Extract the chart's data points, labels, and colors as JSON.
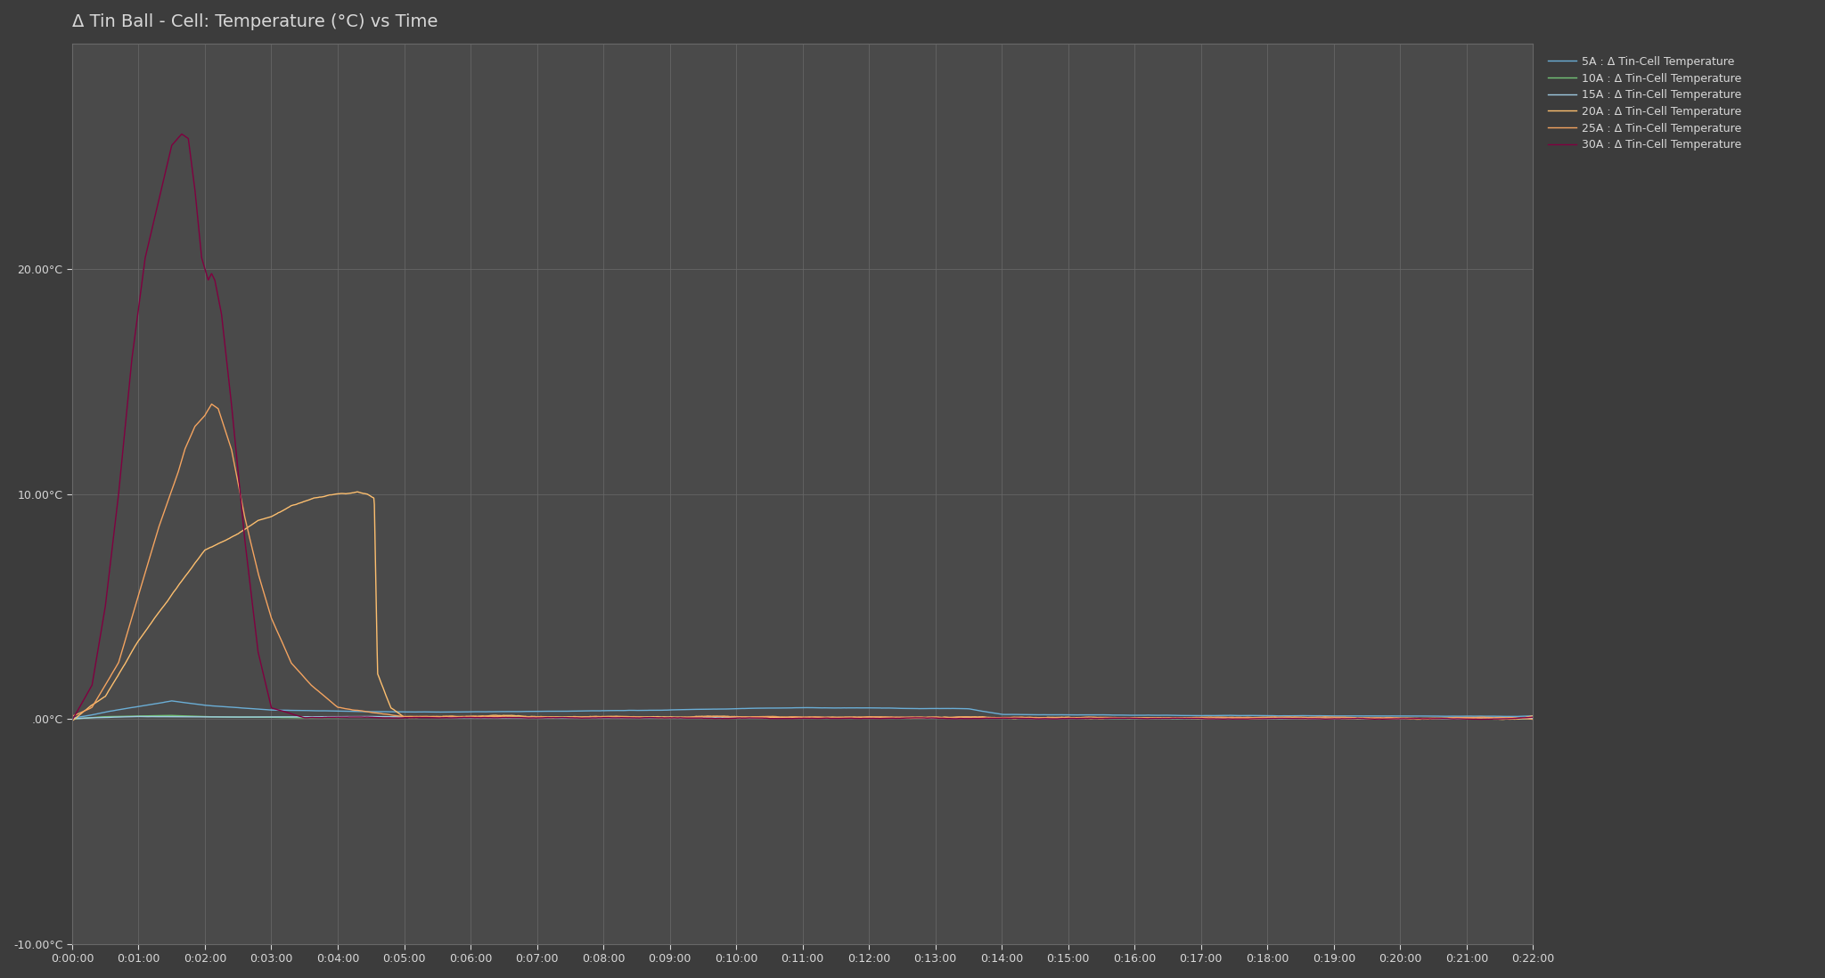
{
  "title": "Δ Tin Ball - Cell: Temperature (°C) vs Time",
  "background_color": "#3c3c3c",
  "plot_bg_color": "#4a4a4a",
  "grid_color": "#686868",
  "text_color": "#d8d8d8",
  "title_fontsize": 14,
  "tick_fontsize": 9,
  "legend_fontsize": 9,
  "ylim": [
    -10,
    30
  ],
  "yticks": [
    -10,
    0,
    10,
    20
  ],
  "ytick_labels": [
    "-10.00°C",
    ".00°C",
    "10.00°C",
    "20.00°C"
  ],
  "total_minutes": 22,
  "series": [
    {
      "label": "5A : Δ Tin-Cell Temperature",
      "color": "#6baed6",
      "segments": [
        {
          "t": 0.0,
          "v": 0.0
        },
        {
          "t": 0.5,
          "v": 0.3
        },
        {
          "t": 1.5,
          "v": 0.8
        },
        {
          "t": 2.0,
          "v": 0.6
        },
        {
          "t": 3.0,
          "v": 0.4
        },
        {
          "t": 5.0,
          "v": 0.3
        },
        {
          "t": 8.0,
          "v": 0.35
        },
        {
          "t": 11.0,
          "v": 0.5
        },
        {
          "t": 13.5,
          "v": 0.45
        },
        {
          "t": 14.0,
          "v": 0.2
        },
        {
          "t": 17.0,
          "v": 0.15
        },
        {
          "t": 22.0,
          "v": 0.1
        }
      ],
      "noise": 0.04
    },
    {
      "label": "10A : Δ Tin-Cell Temperature",
      "color": "#74c476",
      "segments": [
        {
          "t": 0.0,
          "v": 0.0
        },
        {
          "t": 0.5,
          "v": 0.1
        },
        {
          "t": 1.5,
          "v": 0.15
        },
        {
          "t": 2.0,
          "v": 0.1
        },
        {
          "t": 3.5,
          "v": 0.05
        },
        {
          "t": 4.5,
          "v": 0.08
        },
        {
          "t": 6.0,
          "v": 0.1
        },
        {
          "t": 8.0,
          "v": 0.08
        },
        {
          "t": 10.0,
          "v": 0.05
        },
        {
          "t": 22.0,
          "v": 0.0
        }
      ],
      "noise": 0.03
    },
    {
      "label": "15A : Δ Tin-Cell Temperature",
      "color": "#9ecae1",
      "segments": [
        {
          "t": 0.0,
          "v": 0.0
        },
        {
          "t": 0.3,
          "v": 0.05
        },
        {
          "t": 1.0,
          "v": 0.1
        },
        {
          "t": 2.5,
          "v": 0.08
        },
        {
          "t": 4.5,
          "v": 0.1
        },
        {
          "t": 6.0,
          "v": 0.05
        },
        {
          "t": 8.5,
          "v": 0.05
        },
        {
          "t": 22.0,
          "v": 0.0
        }
      ],
      "noise": 0.025
    },
    {
      "label": "20A : Δ Tin-Cell Temperature",
      "color": "#fdbf6f",
      "segments": [
        {
          "t": 0.0,
          "v": 0.0
        },
        {
          "t": 0.5,
          "v": 1.0
        },
        {
          "t": 1.0,
          "v": 3.5
        },
        {
          "t": 1.5,
          "v": 5.5
        },
        {
          "t": 2.0,
          "v": 7.5
        },
        {
          "t": 2.5,
          "v": 8.2
        },
        {
          "t": 2.8,
          "v": 8.8
        },
        {
          "t": 3.0,
          "v": 9.0
        },
        {
          "t": 3.3,
          "v": 9.5
        },
        {
          "t": 3.6,
          "v": 9.8
        },
        {
          "t": 3.8,
          "v": 9.9
        },
        {
          "t": 4.0,
          "v": 10.0
        },
        {
          "t": 4.2,
          "v": 10.05
        },
        {
          "t": 4.3,
          "v": 10.1
        },
        {
          "t": 4.45,
          "v": 10.0
        },
        {
          "t": 4.55,
          "v": 9.8
        },
        {
          "t": 4.6,
          "v": 2.0
        },
        {
          "t": 4.8,
          "v": 0.5
        },
        {
          "t": 5.0,
          "v": 0.1
        },
        {
          "t": 22.0,
          "v": 0.0
        }
      ],
      "noise": 0.15
    },
    {
      "label": "25A : Δ Tin-Cell Temperature",
      "color": "#f4a460",
      "segments": [
        {
          "t": 0.0,
          "v": 0.0
        },
        {
          "t": 0.3,
          "v": 0.5
        },
        {
          "t": 0.7,
          "v": 2.5
        },
        {
          "t": 1.0,
          "v": 5.5
        },
        {
          "t": 1.3,
          "v": 8.5
        },
        {
          "t": 1.6,
          "v": 11.0
        },
        {
          "t": 1.7,
          "v": 12.0
        },
        {
          "t": 1.85,
          "v": 13.0
        },
        {
          "t": 2.0,
          "v": 13.5
        },
        {
          "t": 2.1,
          "v": 14.0
        },
        {
          "t": 2.2,
          "v": 13.8
        },
        {
          "t": 2.4,
          "v": 12.0
        },
        {
          "t": 2.6,
          "v": 9.0
        },
        {
          "t": 2.8,
          "v": 6.5
        },
        {
          "t": 3.0,
          "v": 4.5
        },
        {
          "t": 3.3,
          "v": 2.5
        },
        {
          "t": 3.6,
          "v": 1.5
        },
        {
          "t": 4.0,
          "v": 0.5
        },
        {
          "t": 5.0,
          "v": 0.1
        },
        {
          "t": 22.0,
          "v": 0.05
        }
      ],
      "noise": 0.1
    },
    {
      "label": "30A : Δ Tin-Cell Temperature",
      "color": "#800040",
      "segments": [
        {
          "t": 0.0,
          "v": 0.0
        },
        {
          "t": 0.3,
          "v": 1.5
        },
        {
          "t": 0.5,
          "v": 5.0
        },
        {
          "t": 0.7,
          "v": 10.0
        },
        {
          "t": 0.9,
          "v": 16.0
        },
        {
          "t": 1.1,
          "v": 20.5
        },
        {
          "t": 1.3,
          "v": 23.0
        },
        {
          "t": 1.5,
          "v": 25.5
        },
        {
          "t": 1.65,
          "v": 26.0
        },
        {
          "t": 1.75,
          "v": 25.8
        },
        {
          "t": 1.85,
          "v": 23.5
        },
        {
          "t": 1.95,
          "v": 20.5
        },
        {
          "t": 2.05,
          "v": 19.5
        },
        {
          "t": 2.1,
          "v": 19.8
        },
        {
          "t": 2.15,
          "v": 19.5
        },
        {
          "t": 2.25,
          "v": 18.0
        },
        {
          "t": 2.4,
          "v": 14.0
        },
        {
          "t": 2.6,
          "v": 8.0
        },
        {
          "t": 2.8,
          "v": 3.0
        },
        {
          "t": 3.0,
          "v": 0.5
        },
        {
          "t": 3.5,
          "v": 0.05
        },
        {
          "t": 22.0,
          "v": 0.0
        }
      ],
      "noise": 0.08
    }
  ]
}
